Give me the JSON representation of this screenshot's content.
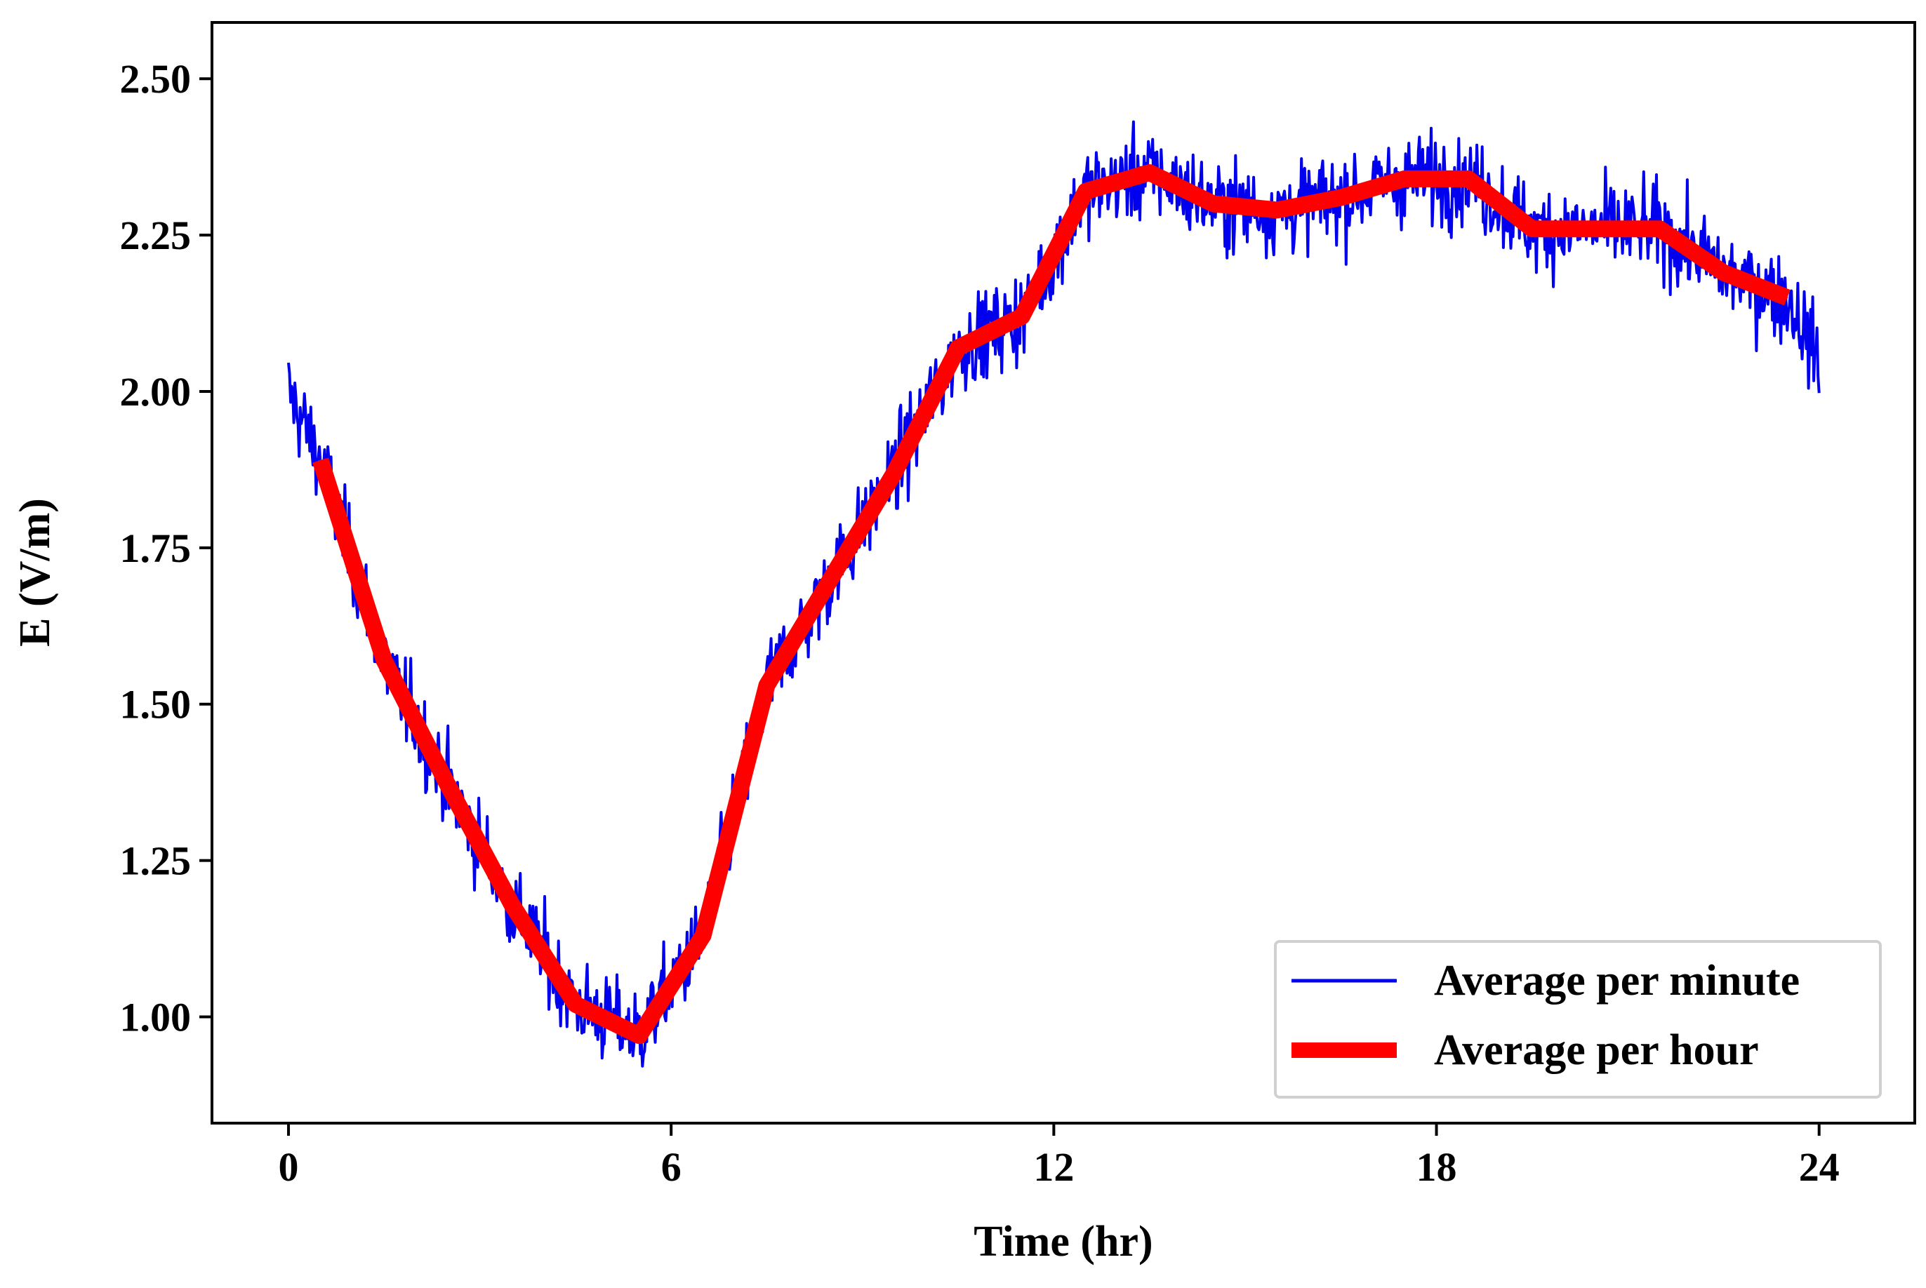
{
  "chart_data": {
    "type": "line",
    "title": "",
    "xlabel": "Time (hr)",
    "ylabel": "E (V/m)",
    "xlim": [
      -1.2,
      25.5
    ],
    "ylim": [
      0.83,
      2.59
    ],
    "xticks": [
      0,
      6,
      12,
      18,
      24
    ],
    "xtick_labels": [
      "0",
      "6",
      "12",
      "18",
      "24"
    ],
    "yticks": [
      1.0,
      1.25,
      1.5,
      1.75,
      2.0,
      2.25,
      2.5
    ],
    "ytick_labels": [
      "1.00",
      "1.25",
      "1.50",
      "1.75",
      "2.00",
      "2.25",
      "2.50"
    ],
    "legend_position": "lower-right",
    "series": [
      {
        "name": "Average per minute",
        "color": "#0000ee",
        "style": "thin",
        "noise_amplitude": 0.065,
        "x_range": [
          0,
          24
        ],
        "trend_x": [
          0,
          0.5,
          1.5,
          2.5,
          3.5,
          4.5,
          5.5,
          6.5,
          7.5,
          8.5,
          9.5,
          10.5,
          11.5,
          12.5,
          13.5,
          14.5,
          15.5,
          16.5,
          17.5,
          18.5,
          19.5,
          20.5,
          21.5,
          22.5,
          23.5,
          24
        ],
        "trend_y": [
          2.0,
          1.89,
          1.57,
          1.37,
          1.18,
          1.02,
          0.97,
          1.13,
          1.53,
          1.7,
          1.87,
          2.07,
          2.12,
          2.32,
          2.35,
          2.3,
          2.29,
          2.31,
          2.34,
          2.34,
          2.26,
          2.26,
          2.26,
          2.19,
          2.15,
          2.05
        ]
      },
      {
        "name": "Average per hour",
        "color": "#ff0000",
        "style": "thick",
        "x": [
          0.5,
          1.5,
          2.5,
          3.5,
          4.5,
          5.5,
          6.5,
          7.5,
          8.5,
          9.5,
          10.5,
          11.5,
          12.5,
          13.5,
          14.5,
          15.5,
          16.5,
          17.5,
          18.5,
          19.5,
          20.5,
          21.5,
          22.5,
          23.5
        ],
        "values": [
          1.89,
          1.57,
          1.37,
          1.18,
          1.02,
          0.97,
          1.13,
          1.53,
          1.7,
          1.87,
          2.07,
          2.12,
          2.32,
          2.35,
          2.3,
          2.29,
          2.31,
          2.34,
          2.34,
          2.26,
          2.26,
          2.26,
          2.19,
          2.15
        ]
      }
    ]
  }
}
